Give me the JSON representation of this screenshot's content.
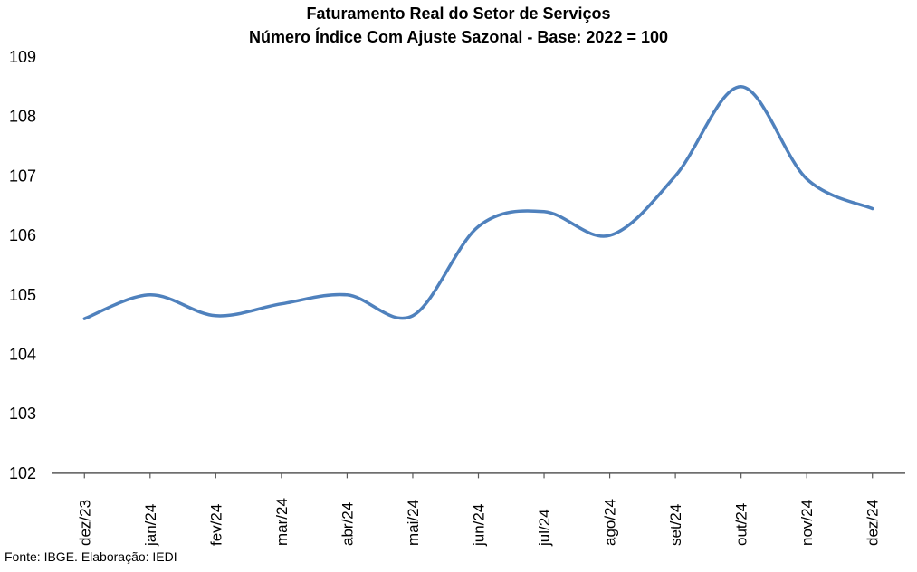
{
  "chart": {
    "title": "Faturamento Real do Setor de Serviços",
    "subtitle": "Número Índice Com Ajuste Sazonal - Base: 2022 = 100",
    "source": "Fonte: IBGE. Elaboração: IEDI"
  },
  "chart_data": {
    "type": "line",
    "title": "Faturamento Real do Setor de Serviços",
    "subtitle": "Número Índice Com Ajuste Sazonal - Base: 2022 = 100",
    "categories": [
      "dez/23",
      "jan/24",
      "fev/24",
      "mar/24",
      "abr/24",
      "mai/24",
      "jun/24",
      "jul/24",
      "ago/24",
      "set/24",
      "out/24",
      "nov/24",
      "dez/24"
    ],
    "values": [
      104.6,
      105.0,
      104.65,
      104.85,
      105.0,
      104.65,
      106.15,
      106.4,
      106.0,
      107.0,
      108.5,
      106.95,
      106.45
    ],
    "xlabel": "",
    "ylabel": "",
    "ylim": [
      102,
      109
    ],
    "yticks": [
      102,
      103,
      104,
      105,
      106,
      107,
      108,
      109
    ],
    "grid": false,
    "legend": false,
    "smooth": true,
    "line_color": "#4F81BD",
    "axis_color": "#595959",
    "source": "Fonte: IBGE. Elaboração: IEDI"
  }
}
